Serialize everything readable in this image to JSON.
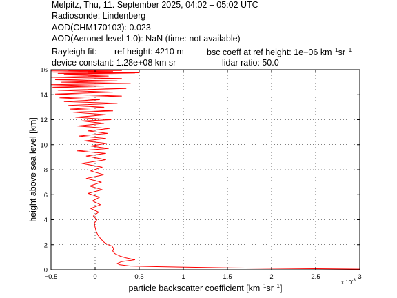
{
  "header": {
    "line1": "Melpitz, Thu, 11. September 2025, 04:02 – 05:02 UTC",
    "line2": "Radiosonde: Lindenberg",
    "line3": "AOD(CHM170103): 0.023",
    "line4": "AOD(Aeronet level 1.0): NaN   (time: not available)",
    "rayleigh_label": "Rayleigh fit:",
    "ref_height": "ref height: 4210 m",
    "bsc_coeff": "bsc coeff at ref height: 1e−06 km",
    "device_constant": "device constant: 1.28e+08 km sr",
    "lidar_ratio": "lidar ratio: 50.0"
  },
  "chart_data": {
    "type": "line",
    "xlabel": "particle backscatter coefficient [km",
    "ylabel": "height above sea level [km]",
    "x_exponent_label": "x 10",
    "x_exponent_power": "-3",
    "xlim": [
      -0.5,
      3
    ],
    "ylim": [
      0,
      16
    ],
    "xticks": [
      "−0.5",
      "0",
      "0.5",
      "1",
      "1.5",
      "2",
      "2.5",
      "3"
    ],
    "yticks": [
      "0",
      "2",
      "4",
      "6",
      "8",
      "10",
      "12",
      "14",
      "16"
    ],
    "grid": true,
    "color": "#ff0000",
    "series": [
      {
        "x": [
          3.0,
          1.5,
          0.7,
          0.4,
          0.28,
          0.25,
          0.3,
          0.45,
          0.35,
          0.28,
          0.22,
          0.2,
          0.21,
          0.19,
          0.15,
          0.1,
          0.06,
          0.03,
          0.01,
          0.0,
          -0.01,
          0.02,
          -0.02,
          0.04,
          -0.05,
          0.06,
          -0.03,
          0.05,
          -0.08,
          0.08,
          -0.06,
          0.07,
          -0.1,
          0.1,
          -0.05,
          0.08,
          -0.15,
          0.12,
          -0.1,
          0.12,
          -0.2,
          0.15,
          -0.05,
          0.13,
          -0.12,
          0.12,
          -0.18,
          0.14,
          -0.08,
          0.16,
          -0.2,
          0.1,
          -0.15,
          0.18,
          -0.22,
          0.12,
          -0.25,
          0.2,
          -0.28,
          0.1,
          -0.3,
          0.25,
          -0.35,
          0.05,
          -0.4,
          0.3,
          -0.45,
          0.2,
          -0.42,
          0.35,
          -0.48,
          0.1,
          -0.5,
          0.4,
          -0.38,
          0.25,
          -0.45,
          0.3,
          -0.5,
          0.15,
          -0.35,
          0.45,
          -0.42,
          0.5,
          -0.48,
          0.2,
          -0.5,
          0.3,
          -0.3,
          0.5
        ],
        "y": [
          0.05,
          0.15,
          0.25,
          0.3,
          0.4,
          0.5,
          0.65,
          0.8,
          0.95,
          1.1,
          1.3,
          1.5,
          1.7,
          1.9,
          2.0,
          2.2,
          2.5,
          2.8,
          3.1,
          3.4,
          3.7,
          4.0,
          4.3,
          4.6,
          4.9,
          5.2,
          5.5,
          5.8,
          6.1,
          6.4,
          6.7,
          7.0,
          7.3,
          7.6,
          7.9,
          8.2,
          8.5,
          8.8,
          9.1,
          9.3,
          9.5,
          9.7,
          9.9,
          10.1,
          10.3,
          10.5,
          10.7,
          10.9,
          11.1,
          11.3,
          11.5,
          11.7,
          11.9,
          12.0,
          12.2,
          12.4,
          12.6,
          12.7,
          12.85,
          13.0,
          13.15,
          13.3,
          13.45,
          13.6,
          13.75,
          13.9,
          14.05,
          14.2,
          14.35,
          14.5,
          14.6,
          14.7,
          14.8,
          14.9,
          15.0,
          15.1,
          15.2,
          15.3,
          15.4,
          15.5,
          15.6,
          15.65,
          15.7,
          15.75,
          15.8,
          15.85,
          15.9,
          15.93,
          15.96,
          16.0
        ]
      }
    ]
  }
}
